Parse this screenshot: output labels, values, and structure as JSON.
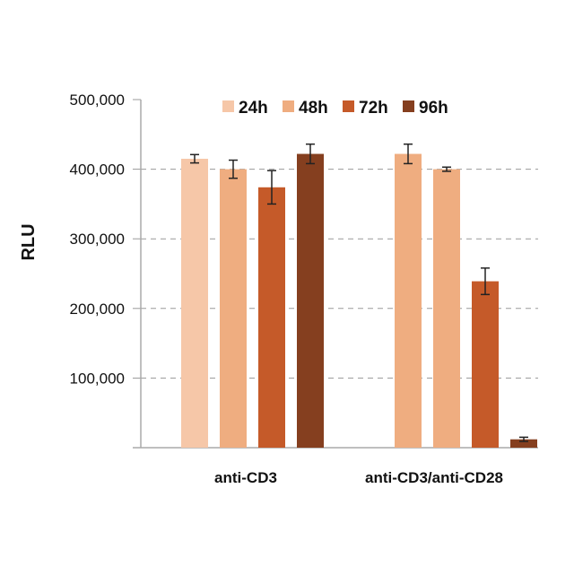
{
  "chart_data": {
    "type": "bar",
    "title": "",
    "xlabel": "",
    "ylabel": "RLU",
    "ylim": [
      0,
      500000
    ],
    "yticks": [
      100000,
      200000,
      300000,
      400000,
      500000
    ],
    "ytick_labels": [
      "100,000",
      "200,000",
      "300,000",
      "400,000",
      "500,000"
    ],
    "grid": "horizontal dashed",
    "legend_placement": "top",
    "categories": [
      "anti-CD3",
      "anti-CD3/anti-CD28"
    ],
    "series": [
      {
        "name": "24h",
        "color": "#f6c7a8",
        "values": [
          415000,
          422000
        ],
        "errors": [
          6000,
          14000
        ],
        "bar_colors": [
          "#f6c7a8",
          "#efad80"
        ]
      },
      {
        "name": "48h",
        "color": "#efad80",
        "values": [
          400000,
          400000
        ],
        "errors": [
          13000,
          3000
        ]
      },
      {
        "name": "72h",
        "color": "#c55a29",
        "values": [
          374000,
          239000
        ],
        "errors": [
          24000,
          19000
        ]
      },
      {
        "name": "96h",
        "color": "#853f1f",
        "values": [
          422000,
          12000
        ],
        "errors": [
          14000,
          3000
        ]
      }
    ]
  }
}
